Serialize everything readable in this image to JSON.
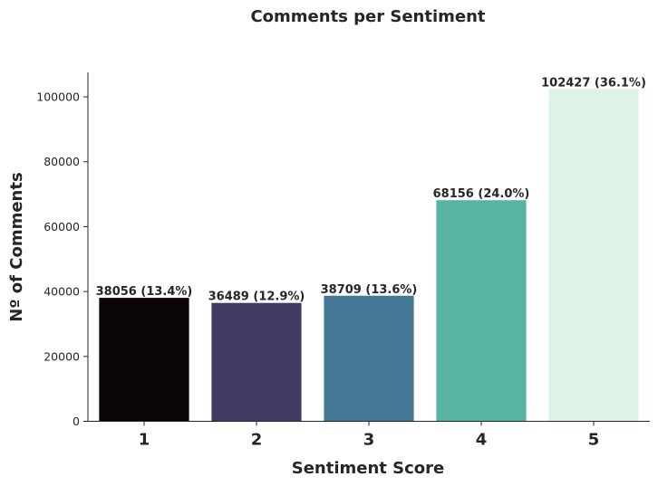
{
  "chart_data": {
    "type": "bar",
    "title": "Comments per Sentiment",
    "xlabel": "Sentiment Score",
    "ylabel": "Nº of Comments",
    "categories": [
      "1",
      "2",
      "3",
      "4",
      "5"
    ],
    "values": [
      38056,
      36489,
      38709,
      68156,
      102427
    ],
    "data_labels": [
      "38056 (13.4%)",
      "36489 (12.9%)",
      "38709 (13.6%)",
      "68156 (24.0%)",
      "102427 (36.1%)"
    ],
    "colors": [
      "#0b0405",
      "#433a63",
      "#447895",
      "#57b4a2",
      "#def2e5"
    ],
    "yticks": [
      0,
      20000,
      40000,
      60000,
      80000,
      100000
    ],
    "ylim": [
      0,
      107550
    ],
    "grid": false,
    "legend": false
  }
}
